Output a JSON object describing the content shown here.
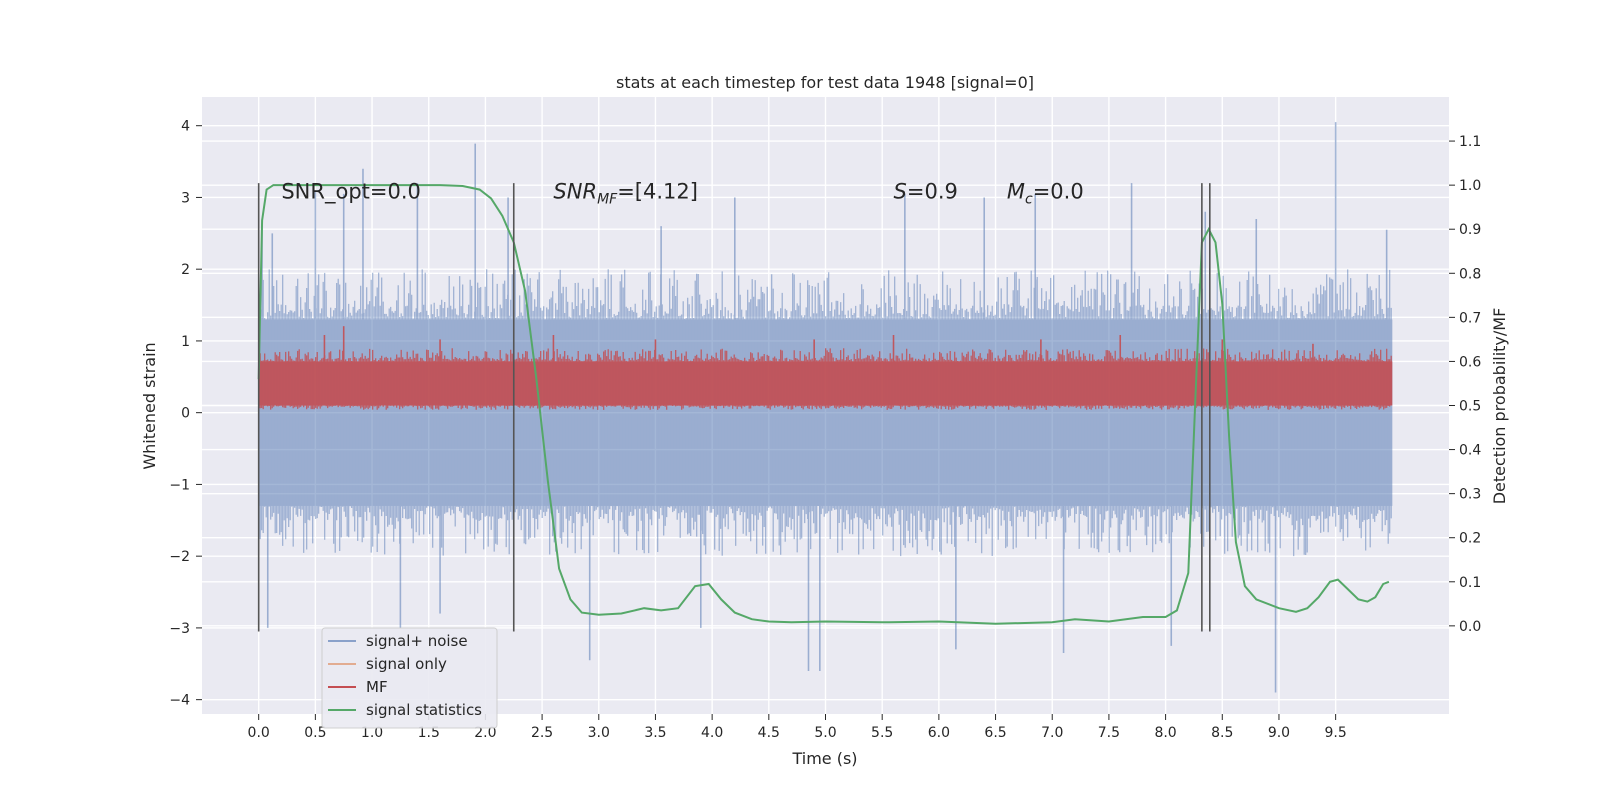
{
  "chart_data": {
    "type": "line",
    "title": "stats at each timestep for test data 1948 [signal=0]",
    "xlabel": "Time (s)",
    "ylabel": "Whitened strain",
    "ylabel_right": "Detection probability/MF",
    "xlim": [
      -0.5,
      10.5
    ],
    "ylim": [
      -4.2,
      4.4
    ],
    "ylim_right": [
      -0.2,
      1.2
    ],
    "x_ticks": [
      0.0,
      0.5,
      1.0,
      1.5,
      2.0,
      2.5,
      3.0,
      3.5,
      4.0,
      4.5,
      5.0,
      5.5,
      6.0,
      6.5,
      7.0,
      7.5,
      8.0,
      8.5,
      9.0,
      9.5
    ],
    "x_tick_labels": [
      "0.0",
      "0.5",
      "1.0",
      "1.5",
      "2.0",
      "2.5",
      "3.0",
      "3.5",
      "4.0",
      "4.5",
      "5.0",
      "5.5",
      "6.0",
      "6.5",
      "7.0",
      "7.5",
      "8.0",
      "8.5",
      "9.0",
      "9.5"
    ],
    "y_ticks": [
      -4,
      -3,
      -2,
      -1,
      0,
      1,
      2,
      3,
      4
    ],
    "y_tick_labels": [
      "−4",
      "−3",
      "−2",
      "−1",
      "0",
      "1",
      "2",
      "3",
      "4"
    ],
    "y_right_ticks": [
      0.0,
      0.1,
      0.2,
      0.3,
      0.4,
      0.5,
      0.6,
      0.7,
      0.8,
      0.9,
      1.0,
      1.1
    ],
    "y_right_tick_labels": [
      "0.0",
      "0.1",
      "0.2",
      "0.3",
      "0.4",
      "0.5",
      "0.6",
      "0.7",
      "0.8",
      "0.9",
      "1.0",
      "1.1"
    ],
    "grid": true,
    "legend_position": "bottom-left",
    "annotations": [
      {
        "text_main": "SNR_opt=0.0",
        "sub": "",
        "tail": "",
        "italic": false,
        "x": 0.2
      },
      {
        "text_main": "SNR",
        "sub": "MF",
        "tail": "=[4.12]",
        "italic": true,
        "x": 2.6
      },
      {
        "text_main": "S",
        "sub": "",
        "tail": "=0.9",
        "italic": true,
        "x": 5.6
      },
      {
        "text_main": "M",
        "sub": "c",
        "tail": "=0.0",
        "italic": true,
        "x": 6.6
      }
    ],
    "annotation_y": 3.1,
    "vlines": {
      "x": [
        0.0,
        2.25,
        8.32,
        8.39
      ],
      "ymin": -3.05,
      "ymax": 3.2,
      "color": "#555555"
    },
    "series": [
      {
        "name": "signal+ noise",
        "color": "#4C72B0",
        "axis": "left",
        "style": "noise-band",
        "x_range": [
          0.0,
          10.0
        ],
        "core_range": [
          -1.3,
          1.3
        ],
        "band_range": [
          -2.0,
          2.0
        ],
        "extremes": [
          {
            "x": 0.03,
            "y": 2.6
          },
          {
            "x": 0.08,
            "y": -3.0
          },
          {
            "x": 0.12,
            "y": 2.5
          },
          {
            "x": 0.5,
            "y": 3.1
          },
          {
            "x": 0.75,
            "y": 3.05
          },
          {
            "x": 0.92,
            "y": 3.4
          },
          {
            "x": 1.25,
            "y": -3.0
          },
          {
            "x": 1.4,
            "y": 3.2
          },
          {
            "x": 1.6,
            "y": -2.8
          },
          {
            "x": 1.91,
            "y": 3.75
          },
          {
            "x": 2.2,
            "y": 3.0
          },
          {
            "x": 2.92,
            "y": -3.45
          },
          {
            "x": 3.55,
            "y": 2.6
          },
          {
            "x": 3.9,
            "y": -3.0
          },
          {
            "x": 4.2,
            "y": 3.0
          },
          {
            "x": 4.85,
            "y": -3.6
          },
          {
            "x": 4.95,
            "y": -3.6
          },
          {
            "x": 5.7,
            "y": 3.05
          },
          {
            "x": 6.15,
            "y": -3.3
          },
          {
            "x": 6.4,
            "y": 3.0
          },
          {
            "x": 6.85,
            "y": 3.05
          },
          {
            "x": 7.1,
            "y": -3.35
          },
          {
            "x": 7.7,
            "y": 3.2
          },
          {
            "x": 8.05,
            "y": -3.25
          },
          {
            "x": 8.35,
            "y": 2.8
          },
          {
            "x": 8.8,
            "y": 2.7
          },
          {
            "x": 8.97,
            "y": -3.9
          },
          {
            "x": 9.5,
            "y": 4.05
          },
          {
            "x": 9.95,
            "y": 2.55
          }
        ]
      },
      {
        "name": "signal only",
        "color": "#DD8452",
        "axis": "left",
        "style": "line",
        "x": [],
        "y": []
      },
      {
        "name": "MF",
        "color": "#C44E52",
        "axis": "right",
        "style": "noise-band",
        "x_range": [
          0.0,
          10.0
        ],
        "core_range": [
          0.5,
          0.6
        ],
        "band_range": [
          0.49,
          0.63
        ],
        "extremes": [
          {
            "x": 0.58,
            "y": 0.66
          },
          {
            "x": 0.75,
            "y": 0.68
          },
          {
            "x": 1.6,
            "y": 0.65
          },
          {
            "x": 2.6,
            "y": 0.66
          },
          {
            "x": 3.5,
            "y": 0.65
          },
          {
            "x": 4.9,
            "y": 0.65
          },
          {
            "x": 5.6,
            "y": 0.66
          },
          {
            "x": 6.9,
            "y": 0.65
          },
          {
            "x": 7.6,
            "y": 0.66
          },
          {
            "x": 8.5,
            "y": 0.65
          },
          {
            "x": 9.3,
            "y": 0.64
          }
        ]
      },
      {
        "name": "signal statistics",
        "color": "#55A868",
        "axis": "right",
        "style": "line",
        "x": [
          0.0,
          0.03,
          0.07,
          0.13,
          0.2,
          0.4,
          0.8,
          1.2,
          1.6,
          1.8,
          1.95,
          2.05,
          2.15,
          2.25,
          2.35,
          2.45,
          2.55,
          2.65,
          2.75,
          2.85,
          3.0,
          3.2,
          3.4,
          3.55,
          3.7,
          3.85,
          3.97,
          4.08,
          4.2,
          4.35,
          4.5,
          4.7,
          5.0,
          5.5,
          6.0,
          6.5,
          7.0,
          7.2,
          7.5,
          7.8,
          8.0,
          8.1,
          8.2,
          8.26,
          8.32,
          8.38,
          8.44,
          8.5,
          8.56,
          8.62,
          8.7,
          8.8,
          9.0,
          9.15,
          9.25,
          9.35,
          9.45,
          9.52,
          9.6,
          9.7,
          9.78,
          9.85,
          9.92,
          9.97
        ],
        "y": [
          0.56,
          0.92,
          0.99,
          1.0,
          1.0,
          1.0,
          1.0,
          1.0,
          1.0,
          0.998,
          0.99,
          0.97,
          0.93,
          0.87,
          0.76,
          0.56,
          0.33,
          0.13,
          0.06,
          0.03,
          0.025,
          0.028,
          0.04,
          0.035,
          0.04,
          0.09,
          0.095,
          0.06,
          0.03,
          0.015,
          0.01,
          0.008,
          0.01,
          0.008,
          0.01,
          0.005,
          0.008,
          0.015,
          0.01,
          0.02,
          0.02,
          0.035,
          0.12,
          0.5,
          0.87,
          0.9,
          0.87,
          0.73,
          0.43,
          0.19,
          0.09,
          0.06,
          0.04,
          0.032,
          0.04,
          0.065,
          0.1,
          0.105,
          0.085,
          0.06,
          0.055,
          0.065,
          0.095,
          0.1
        ]
      }
    ]
  }
}
